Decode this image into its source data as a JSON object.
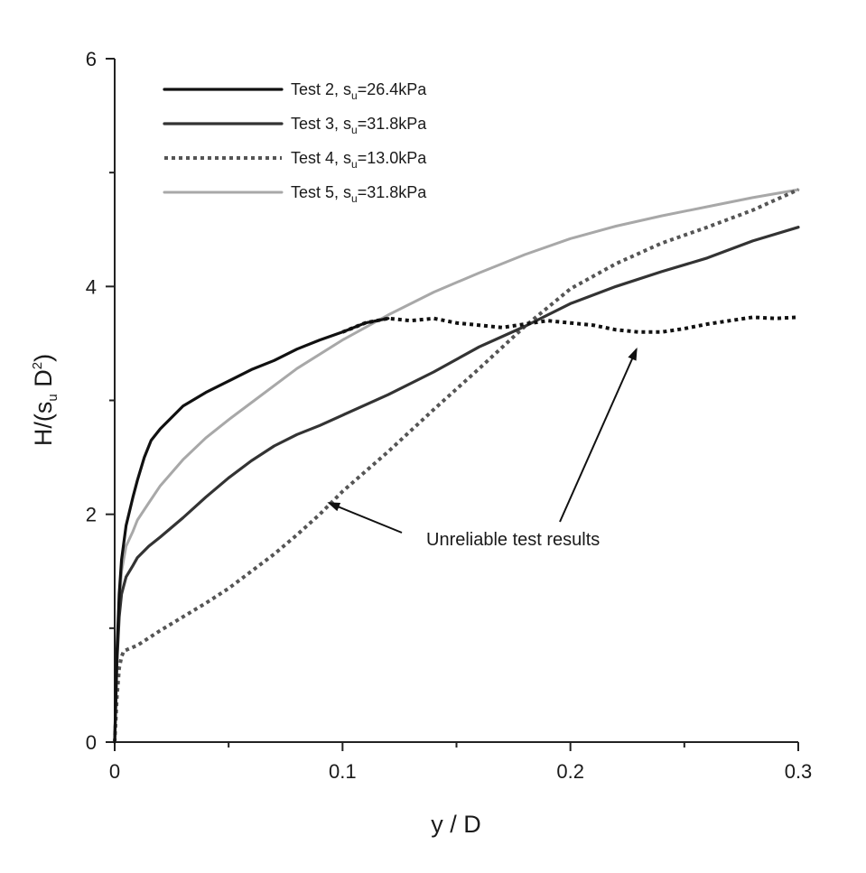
{
  "chart_data": {
    "type": "line",
    "xlabel": "y / D",
    "ylabel_parts": {
      "main": "H/(s",
      "sub": "u",
      "mid": " D",
      "sup": "2",
      "end": ")"
    },
    "xlim": [
      0,
      0.3
    ],
    "ylim": [
      0,
      6
    ],
    "x_ticks": [
      "0",
      "0.1",
      "0.2",
      "0.3"
    ],
    "y_ticks": [
      "0",
      "2",
      "4",
      "6"
    ],
    "grid": false,
    "legend_position": "top-left",
    "series": [
      {
        "name": "Test 2, su=26.4kPa",
        "legend": {
          "prefix": "Test 2, s",
          "sub": "u",
          "suffix": "=26.4kPa"
        },
        "color": "#111111",
        "style": "solid",
        "x": [
          0,
          0.001,
          0.002,
          0.003,
          0.005,
          0.008,
          0.01,
          0.013,
          0.016,
          0.02,
          0.025,
          0.03,
          0.04,
          0.05,
          0.06,
          0.07,
          0.08,
          0.09,
          0.1,
          0.11,
          0.12
        ],
        "y": [
          0,
          0.8,
          1.3,
          1.6,
          1.9,
          2.15,
          2.3,
          2.5,
          2.65,
          2.75,
          2.85,
          2.95,
          3.07,
          3.17,
          3.27,
          3.35,
          3.45,
          3.53,
          3.6,
          3.68,
          3.72
        ]
      },
      {
        "name": "Test 3, su=31.8kPa",
        "legend": {
          "prefix": "Test 3, s",
          "sub": "u",
          "suffix": "=31.8kPa"
        },
        "color": "#333333",
        "style": "solid",
        "x": [
          0,
          0.001,
          0.002,
          0.003,
          0.005,
          0.008,
          0.01,
          0.015,
          0.02,
          0.03,
          0.04,
          0.05,
          0.06,
          0.07,
          0.08,
          0.09,
          0.1,
          0.12,
          0.14,
          0.16,
          0.18,
          0.2,
          0.22,
          0.24,
          0.26,
          0.28,
          0.3
        ],
        "y": [
          0,
          0.7,
          1.1,
          1.3,
          1.45,
          1.55,
          1.62,
          1.72,
          1.8,
          1.97,
          2.15,
          2.32,
          2.47,
          2.6,
          2.7,
          2.78,
          2.87,
          3.05,
          3.25,
          3.47,
          3.65,
          3.85,
          4.0,
          4.13,
          4.25,
          4.4,
          4.52
        ]
      },
      {
        "name": "Test 4, su=13.0kPa",
        "legend": {
          "prefix": "Test 4, s",
          "sub": "u",
          "suffix": "=13.0kPa"
        },
        "color": "#555555",
        "style": "dotted",
        "x": [
          0,
          0.001,
          0.002,
          0.003,
          0.004,
          0.01,
          0.02,
          0.03,
          0.04,
          0.05,
          0.06,
          0.07,
          0.08,
          0.09,
          0.1,
          0.12,
          0.14,
          0.16,
          0.18,
          0.2,
          0.22,
          0.24,
          0.26,
          0.28,
          0.3
        ],
        "y": [
          0,
          0.4,
          0.65,
          0.75,
          0.8,
          0.85,
          0.98,
          1.1,
          1.22,
          1.35,
          1.5,
          1.65,
          1.82,
          2.0,
          2.2,
          2.55,
          2.92,
          3.28,
          3.65,
          3.98,
          4.2,
          4.38,
          4.52,
          4.67,
          4.85
        ]
      },
      {
        "name": "Test 4, su=13.0kPa (unreliable)",
        "color": "#111111",
        "style": "dotted",
        "x": [
          0.1,
          0.11,
          0.12,
          0.13,
          0.14,
          0.15,
          0.16,
          0.17,
          0.18,
          0.19,
          0.2,
          0.21,
          0.22,
          0.23,
          0.24,
          0.25,
          0.26,
          0.27,
          0.28,
          0.29,
          0.3
        ],
        "y": [
          3.6,
          3.68,
          3.72,
          3.7,
          3.72,
          3.68,
          3.66,
          3.64,
          3.67,
          3.7,
          3.68,
          3.66,
          3.62,
          3.6,
          3.6,
          3.63,
          3.67,
          3.7,
          3.73,
          3.72,
          3.73
        ]
      },
      {
        "name": "Test 5, su=31.8kPa",
        "legend": {
          "prefix": "Test 5, s",
          "sub": "u",
          "suffix": "=31.8kPa"
        },
        "color": "#a8a8a8",
        "style": "solid",
        "x": [
          0,
          0.001,
          0.002,
          0.003,
          0.005,
          0.008,
          0.01,
          0.015,
          0.02,
          0.03,
          0.04,
          0.05,
          0.06,
          0.08,
          0.1,
          0.12,
          0.14,
          0.16,
          0.18,
          0.2,
          0.22,
          0.24,
          0.26,
          0.28,
          0.3
        ],
        "y": [
          0,
          0.7,
          1.2,
          1.5,
          1.72,
          1.85,
          1.95,
          2.1,
          2.25,
          2.48,
          2.67,
          2.83,
          2.98,
          3.28,
          3.53,
          3.75,
          3.95,
          4.12,
          4.28,
          4.42,
          4.53,
          4.62,
          4.7,
          4.78,
          4.85
        ]
      }
    ],
    "annotation": {
      "text": "Unreliable test results",
      "arrows": [
        {
          "to_x": 0.094,
          "to_y": 2.1
        },
        {
          "to_x": 0.229,
          "to_y": 3.45
        }
      ]
    }
  }
}
